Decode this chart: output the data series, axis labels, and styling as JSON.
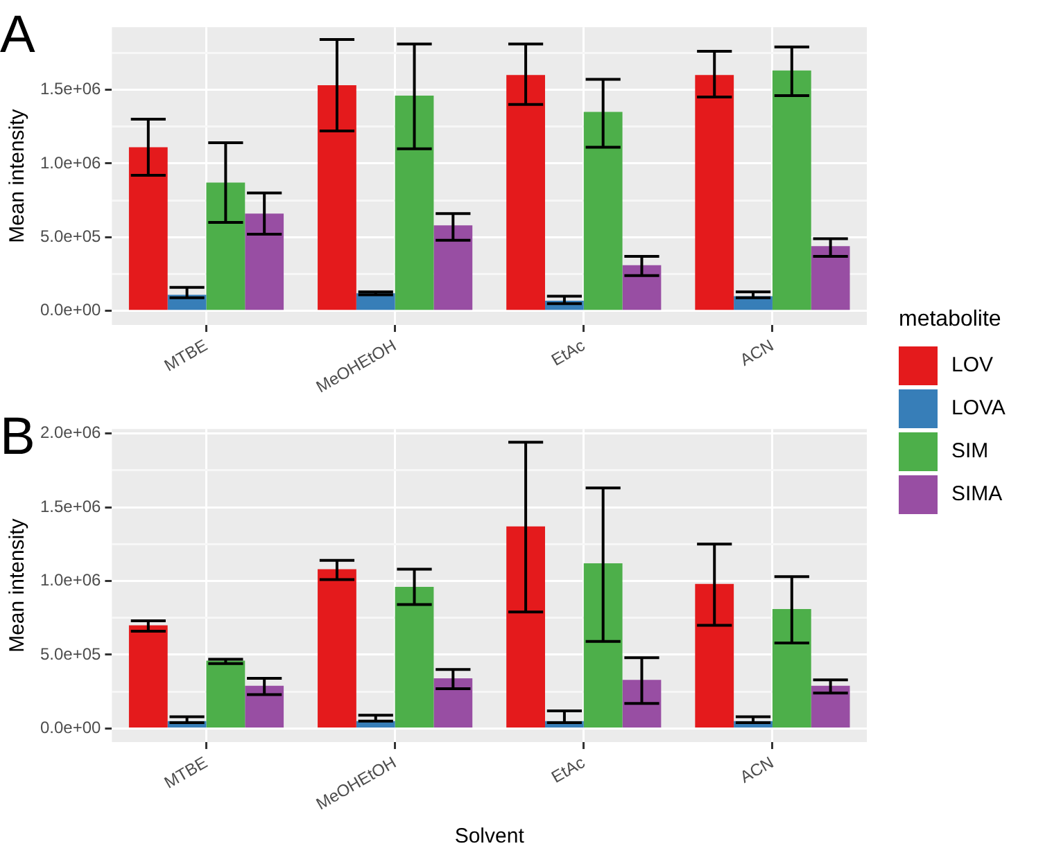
{
  "chart_data": [
    {
      "type": "bar",
      "title": "A",
      "ylabel": "Mean intensity",
      "categories": [
        "MTBE",
        "MeOHEtOH",
        "EtAc",
        "ACN"
      ],
      "legend_title": "metabolite",
      "legend": "right",
      "grid": true,
      "ylim": [
        -95000,
        1924000
      ],
      "yticks": [
        {
          "value": 0,
          "label": "0.0e+00"
        },
        {
          "value": 250000,
          "label": null
        },
        {
          "value": 500000,
          "label": "5.0e+05"
        },
        {
          "value": 750000,
          "label": null
        },
        {
          "value": 1000000,
          "label": "1.0e+06"
        },
        {
          "value": 1250000,
          "label": null
        },
        {
          "value": 1500000,
          "label": "1.5e+06"
        },
        {
          "value": 1750000,
          "label": null
        }
      ],
      "series": [
        {
          "name": "LOV",
          "color": "#e41a1c",
          "values": [
            1110000,
            1530000,
            1600000,
            1600000
          ],
          "errors": [
            [
              920000,
              1300000
            ],
            [
              1220000,
              1840000
            ],
            [
              1400000,
              1810000
            ],
            [
              1450000,
              1760000
            ]
          ]
        },
        {
          "name": "LOVA",
          "color": "#377eb8",
          "values": [
            110000,
            120000,
            70000,
            100000
          ],
          "errors": [
            [
              90000,
              160000
            ],
            [
              110000,
              130000
            ],
            [
              50000,
              100000
            ],
            [
              90000,
              130000
            ]
          ]
        },
        {
          "name": "SIM",
          "color": "#4daf4a",
          "values": [
            870000,
            1460000,
            1350000,
            1630000
          ],
          "errors": [
            [
              600000,
              1140000
            ],
            [
              1100000,
              1810000
            ],
            [
              1110000,
              1570000
            ],
            [
              1460000,
              1790000
            ]
          ]
        },
        {
          "name": "SIMA",
          "color": "#984ea3",
          "values": [
            660000,
            580000,
            310000,
            440000
          ],
          "errors": [
            [
              520000,
              800000
            ],
            [
              480000,
              660000
            ],
            [
              240000,
              370000
            ],
            [
              370000,
              490000
            ]
          ]
        }
      ]
    },
    {
      "type": "bar",
      "title": "B",
      "ylabel": "Mean intensity",
      "xlabel": "Solvent",
      "categories": [
        "MTBE",
        "MeOHEtOH",
        "EtAc",
        "ACN"
      ],
      "grid": true,
      "ylim": [
        -92000,
        2030000
      ],
      "yticks": [
        {
          "value": 0,
          "label": "0.0e+00"
        },
        {
          "value": 250000,
          "label": null
        },
        {
          "value": 500000,
          "label": "5.0e+05"
        },
        {
          "value": 750000,
          "label": null
        },
        {
          "value": 1000000,
          "label": "1.0e+06"
        },
        {
          "value": 1250000,
          "label": null
        },
        {
          "value": 1500000,
          "label": "1.5e+06"
        },
        {
          "value": 1750000,
          "label": null
        },
        {
          "value": 2000000,
          "label": "2.0e+06"
        }
      ],
      "series": [
        {
          "color": "#e41a1c",
          "values": [
            700000,
            1080000,
            1370000,
            980000
          ],
          "errors": [
            [
              660000,
              730000
            ],
            [
              1010000,
              1140000
            ],
            [
              790000,
              1940000
            ],
            [
              700000,
              1250000
            ]
          ]
        },
        {
          "color": "#377eb8",
          "values": [
            50000,
            50000,
            50000,
            50000
          ],
          "errors": [
            [
              40000,
              80000
            ],
            [
              50000,
              90000
            ],
            [
              40000,
              120000
            ],
            [
              40000,
              80000
            ]
          ]
        },
        {
          "color": "#4daf4a",
          "values": [
            460000,
            960000,
            1120000,
            810000
          ],
          "errors": [
            [
              440000,
              470000
            ],
            [
              840000,
              1080000
            ],
            [
              590000,
              1630000
            ],
            [
              580000,
              1030000
            ]
          ]
        },
        {
          "color": "#984ea3",
          "values": [
            290000,
            340000,
            330000,
            290000
          ],
          "errors": [
            [
              230000,
              340000
            ],
            [
              270000,
              400000
            ],
            [
              170000,
              480000
            ],
            [
              240000,
              330000
            ]
          ]
        }
      ]
    }
  ]
}
